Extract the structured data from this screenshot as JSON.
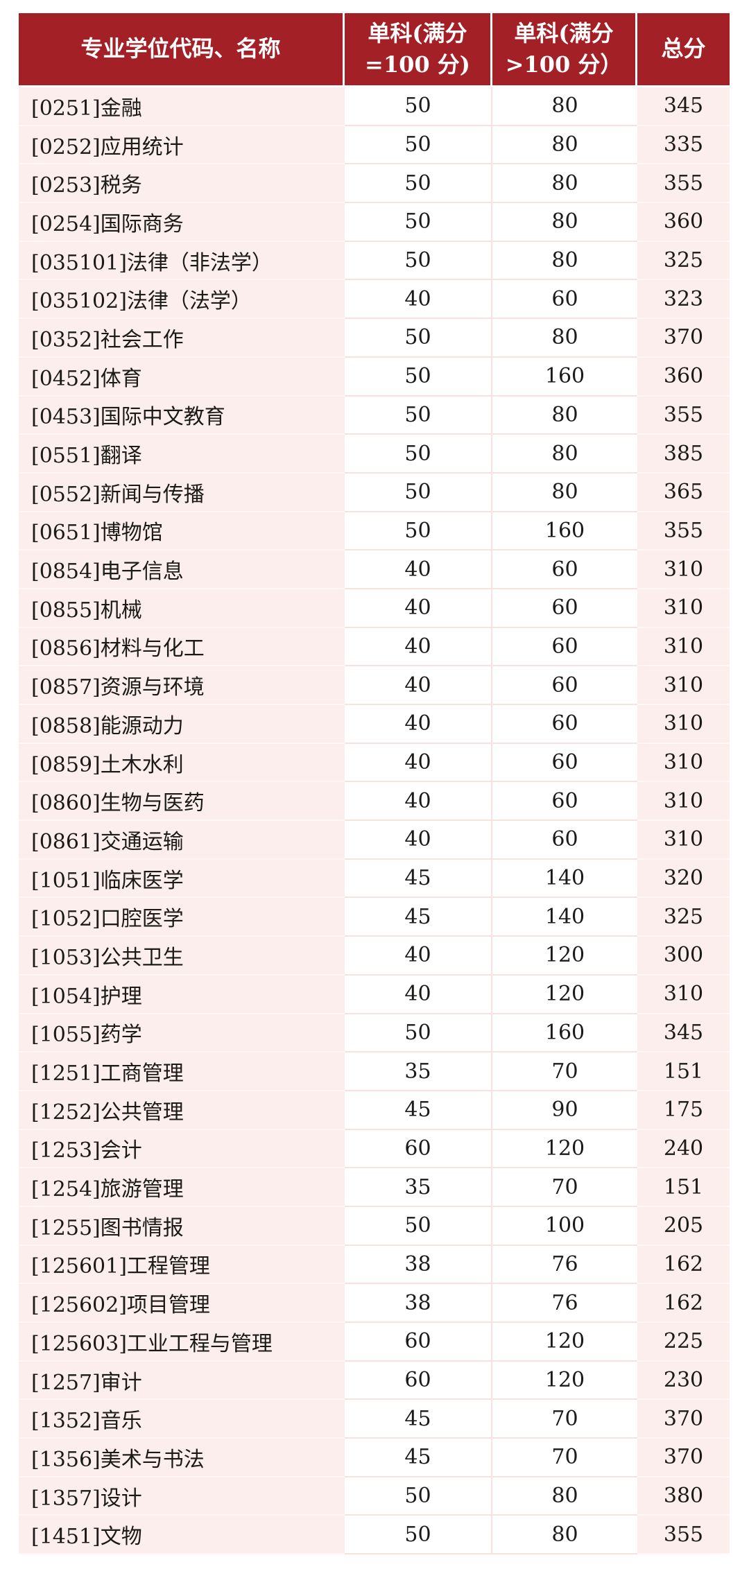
{
  "colors": {
    "header_bg": "#A22026",
    "header_text": "#FFFFFF",
    "pink_cell": "#FBEEEC",
    "white_cell": "#FFFFFF",
    "body_text": "#1B1A19",
    "divider_pink": "#F8E2E0",
    "divider_light": "#FEF7F6"
  },
  "header": {
    "program": "专业学位代码、名称",
    "single_eq": [
      "单科(满分",
      "=100 分)"
    ],
    "single_gt": [
      "单科(满分",
      ">100 分）"
    ],
    "total": "总分"
  },
  "rows": [
    {
      "name": "[0251]金融",
      "single_eq": "50",
      "single_gt": "80",
      "total": "345"
    },
    {
      "name": "[0252]应用统计",
      "single_eq": "50",
      "single_gt": "80",
      "total": "335"
    },
    {
      "name": "[0253]税务",
      "single_eq": "50",
      "single_gt": "80",
      "total": "355"
    },
    {
      "name": "[0254]国际商务",
      "single_eq": "50",
      "single_gt": "80",
      "total": "360"
    },
    {
      "name": "[035101]法律（非法学）",
      "single_eq": "50",
      "single_gt": "80",
      "total": "325"
    },
    {
      "name": "[035102]法律（法学）",
      "single_eq": "40",
      "single_gt": "60",
      "total": "323"
    },
    {
      "name": "[0352]社会工作",
      "single_eq": "50",
      "single_gt": "80",
      "total": "370"
    },
    {
      "name": "[0452]体育",
      "single_eq": "50",
      "single_gt": "160",
      "total": "360"
    },
    {
      "name": "[0453]国际中文教育",
      "single_eq": "50",
      "single_gt": "80",
      "total": "355"
    },
    {
      "name": "[0551]翻译",
      "single_eq": "50",
      "single_gt": "80",
      "total": "385"
    },
    {
      "name": "[0552]新闻与传播",
      "single_eq": "50",
      "single_gt": "80",
      "total": "365"
    },
    {
      "name": "[0651]博物馆",
      "single_eq": "50",
      "single_gt": "160",
      "total": "355"
    },
    {
      "name": "[0854]电子信息",
      "single_eq": "40",
      "single_gt": "60",
      "total": "310"
    },
    {
      "name": "[0855]机械",
      "single_eq": "40",
      "single_gt": "60",
      "total": "310"
    },
    {
      "name": "[0856]材料与化工",
      "single_eq": "40",
      "single_gt": "60",
      "total": "310"
    },
    {
      "name": "[0857]资源与环境",
      "single_eq": "40",
      "single_gt": "60",
      "total": "310"
    },
    {
      "name": "[0858]能源动力",
      "single_eq": "40",
      "single_gt": "60",
      "total": "310"
    },
    {
      "name": "[0859]土木水利",
      "single_eq": "40",
      "single_gt": "60",
      "total": "310"
    },
    {
      "name": "[0860]生物与医药",
      "single_eq": "40",
      "single_gt": "60",
      "total": "310"
    },
    {
      "name": "[0861]交通运输",
      "single_eq": "40",
      "single_gt": "60",
      "total": "310"
    },
    {
      "name": "[1051]临床医学",
      "single_eq": "45",
      "single_gt": "140",
      "total": "320"
    },
    {
      "name": "[1052]口腔医学",
      "single_eq": "45",
      "single_gt": "140",
      "total": "325"
    },
    {
      "name": "[1053]公共卫生",
      "single_eq": "40",
      "single_gt": "120",
      "total": "300"
    },
    {
      "name": "[1054]护理",
      "single_eq": "40",
      "single_gt": "120",
      "total": "310"
    },
    {
      "name": "[1055]药学",
      "single_eq": "50",
      "single_gt": "160",
      "total": "345"
    },
    {
      "name": "[1251]工商管理",
      "single_eq": "35",
      "single_gt": "70",
      "total": "151"
    },
    {
      "name": "[1252]公共管理",
      "single_eq": "45",
      "single_gt": "90",
      "total": "175"
    },
    {
      "name": "[1253]会计",
      "single_eq": "60",
      "single_gt": "120",
      "total": "240"
    },
    {
      "name": "[1254]旅游管理",
      "single_eq": "35",
      "single_gt": "70",
      "total": "151"
    },
    {
      "name": "[1255]图书情报",
      "single_eq": "50",
      "single_gt": "100",
      "total": "205"
    },
    {
      "name": "[125601]工程管理",
      "single_eq": "38",
      "single_gt": "76",
      "total": "162"
    },
    {
      "name": "[125602]项目管理",
      "single_eq": "38",
      "single_gt": "76",
      "total": "162"
    },
    {
      "name": "[125603]工业工程与管理",
      "single_eq": "60",
      "single_gt": "120",
      "total": "225"
    },
    {
      "name": "[1257]审计",
      "single_eq": "60",
      "single_gt": "120",
      "total": "230"
    },
    {
      "name": "[1352]音乐",
      "single_eq": "45",
      "single_gt": "70",
      "total": "370"
    },
    {
      "name": "[1356]美术与书法",
      "single_eq": "45",
      "single_gt": "70",
      "total": "370"
    },
    {
      "name": "[1357]设计",
      "single_eq": "50",
      "single_gt": "80",
      "total": "380"
    },
    {
      "name": "[1451]文物",
      "single_eq": "50",
      "single_gt": "80",
      "total": "355"
    }
  ]
}
